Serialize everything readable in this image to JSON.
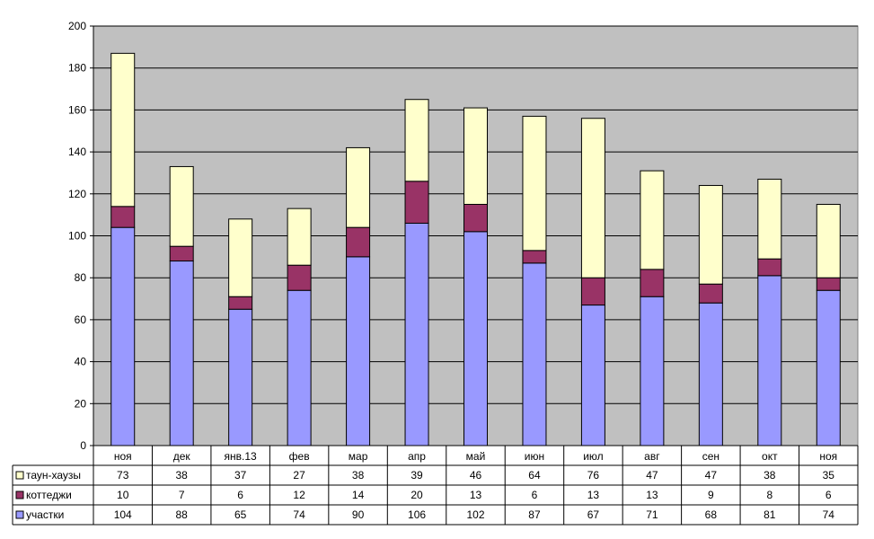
{
  "chart_data": {
    "type": "bar",
    "stacked": true,
    "categories": [
      "ноя",
      "дек",
      "янв.13",
      "фев",
      "мар",
      "апр",
      "май",
      "июн",
      "июл",
      "авг",
      "сен",
      "окт",
      "ноя"
    ],
    "series": [
      {
        "name": "участки",
        "color": "#9999ff",
        "values": [
          104,
          88,
          65,
          74,
          90,
          106,
          102,
          87,
          67,
          71,
          68,
          81,
          74
        ]
      },
      {
        "name": "коттеджи",
        "color": "#993366",
        "values": [
          10,
          7,
          6,
          12,
          14,
          20,
          13,
          6,
          13,
          13,
          9,
          8,
          6
        ]
      },
      {
        "name": "таун-хаузы",
        "color": "#ffffcc",
        "values": [
          73,
          38,
          37,
          27,
          38,
          39,
          46,
          64,
          76,
          47,
          47,
          38,
          35
        ]
      }
    ],
    "table_row_order": [
      "таун-хаузы",
      "коттеджи",
      "участки"
    ],
    "ylim": [
      0,
      200
    ],
    "yticks": [
      0,
      20,
      40,
      60,
      80,
      100,
      120,
      140,
      160,
      180,
      200
    ],
    "grid": true,
    "plot_background": "#c0c0c0",
    "legend": "data-table"
  }
}
